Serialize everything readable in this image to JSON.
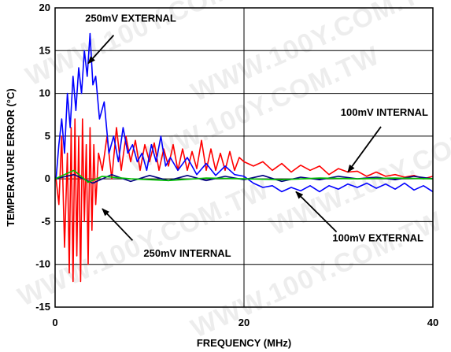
{
  "chart_data": {
    "type": "line",
    "xlabel": "FREQUENCY (MHz)",
    "ylabel": "TEMPERATURE ERROR (°C)",
    "xlim": [
      0,
      40
    ],
    "ylim": [
      -15,
      20
    ],
    "xticks": [
      0,
      20,
      40
    ],
    "yticks": [
      -15,
      -10,
      -5,
      0,
      5,
      10,
      15,
      20
    ],
    "grid": true,
    "watermark": "WWW.100Y.COM.TW",
    "colors": {
      "red": "#ff0000",
      "blue": "#0000ff",
      "navy": "#000080",
      "green": "#00c000"
    },
    "annotations": [
      {
        "text": "250mV EXTERNAL",
        "points_to": {
          "x": 3.5,
          "y": 13.5
        }
      },
      {
        "text": "100mV INTERNAL",
        "points_to": {
          "x": 31,
          "y": 0.8
        }
      },
      {
        "text": "250mV INTERNAL",
        "points_to": {
          "x": 5,
          "y": -3.5
        }
      },
      {
        "text": "100mV EXTERNAL",
        "points_to": {
          "x": 25.5,
          "y": -1.5
        }
      }
    ],
    "series": [
      {
        "color": "red",
        "x": [
          0.1,
          0.4,
          0.7,
          1,
          1.3,
          1.5,
          1.7,
          1.9,
          2.1,
          2.3,
          2.5,
          2.7,
          2.9,
          3.1,
          3.3,
          3.5,
          3.7,
          3.9,
          4.1,
          4.3,
          4.6,
          5,
          5.5,
          6,
          6.5,
          7,
          7.5,
          8,
          8.5,
          9,
          9.5,
          10,
          10.5,
          11,
          11.5,
          12,
          12.5,
          13,
          13.5,
          14,
          14.5,
          15,
          15.5,
          16,
          16.5,
          17,
          17.5,
          18,
          18.5,
          19,
          19.5,
          20,
          21,
          22,
          23,
          24,
          25,
          26,
          27,
          28,
          29,
          30,
          31,
          32,
          33,
          34,
          35,
          36,
          37,
          38,
          39,
          40
        ],
        "y": [
          0,
          -3,
          5,
          -8,
          3,
          -11,
          6,
          -12,
          7,
          -9,
          5,
          -12,
          7,
          -5,
          4,
          -10,
          6,
          -6,
          4,
          -3,
          3,
          1,
          5,
          0,
          6,
          1,
          5,
          2,
          4.5,
          1,
          4,
          2,
          4.2,
          1,
          3.5,
          1.5,
          4,
          1,
          3.5,
          1,
          3.2,
          1.2,
          4.5,
          1,
          3.5,
          1,
          3,
          1,
          3.2,
          1,
          2.5,
          2,
          1.5,
          2,
          1,
          1.8,
          0.8,
          1.6,
          1,
          1.5,
          0.5,
          1.2,
          0.8,
          0.9,
          0.3,
          0.8,
          0.3,
          0.5,
          0.2,
          0.4,
          0,
          0.3
        ]
      },
      {
        "color": "blue",
        "x": [
          0.1,
          0.4,
          0.7,
          1,
          1.3,
          1.6,
          1.9,
          2.2,
          2.5,
          2.8,
          3.1,
          3.4,
          3.7,
          4,
          4.3,
          4.7,
          5.2,
          5.7,
          6.2,
          6.7,
          7.2,
          7.7,
          8.2,
          8.7,
          9.2,
          9.7,
          10.2,
          10.7,
          11.2,
          11.7,
          12.2,
          13,
          14,
          15,
          16,
          17,
          18,
          19,
          20,
          21,
          22,
          23,
          24,
          25,
          26,
          27,
          28,
          29,
          30,
          31,
          32,
          33,
          34,
          35,
          36,
          37,
          38,
          39,
          40
        ],
        "y": [
          0,
          4,
          7,
          3,
          10,
          6,
          12,
          8,
          13,
          10,
          15,
          12,
          17,
          11,
          12,
          7,
          9,
          3,
          5,
          2,
          6,
          3,
          4,
          2,
          3,
          1,
          4,
          2,
          5,
          1.5,
          2.5,
          1,
          2.5,
          0.5,
          1.8,
          0.4,
          1.5,
          0.5,
          0.3,
          -0.5,
          -1,
          -0.8,
          -1.5,
          -1,
          -1.4,
          -0.8,
          -1.5,
          -0.8,
          -1.2,
          -0.6,
          -1,
          -0.5,
          -1.1,
          -0.6,
          -1.2,
          -0.5,
          -1.3,
          -0.8,
          -1.5
        ]
      },
      {
        "color": "navy",
        "x": [
          0,
          2,
          4,
          6,
          8,
          10,
          12,
          14,
          16,
          18,
          20,
          22,
          24,
          26,
          28,
          30,
          32,
          34,
          36,
          38,
          40
        ],
        "y": [
          0,
          0.5,
          -0.5,
          0.5,
          -0.3,
          0.4,
          -0.2,
          0.4,
          -0.2,
          0.3,
          -0.1,
          0.4,
          -0.3,
          0.2,
          -0.1,
          0.3,
          0,
          0.2,
          -0.1,
          0.3,
          0
        ]
      },
      {
        "color": "green",
        "x": [
          0,
          2,
          3.5,
          5,
          8,
          12,
          16,
          20,
          24,
          28,
          32,
          36,
          40
        ],
        "y": [
          0,
          1,
          -0.4,
          0.3,
          0,
          -0.2,
          0.1,
          0,
          -0.1,
          0.1,
          0,
          0.1,
          0
        ]
      }
    ]
  }
}
